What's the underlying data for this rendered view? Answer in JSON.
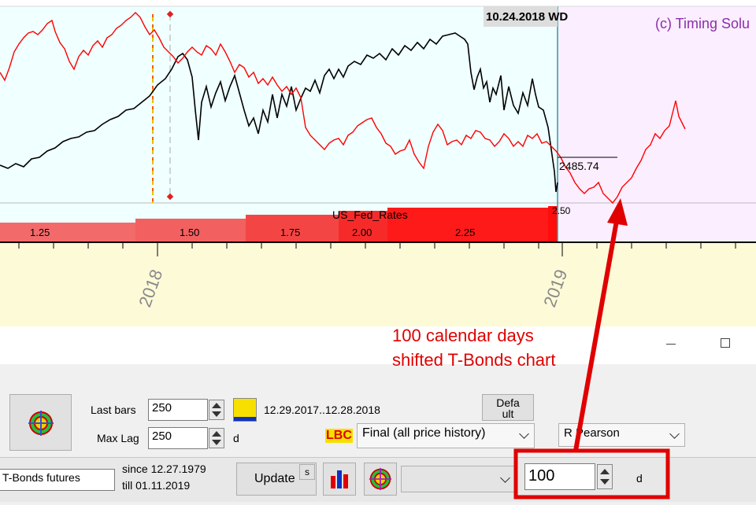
{
  "chart": {
    "date_label": "10.24.2018 WD",
    "copyright": "(c) Timing Solu",
    "price_label": "2485.74",
    "rate_last": "2.50",
    "indicator_name": "US_Fed_Rates",
    "rate_labels": [
      "1.25",
      "1.50",
      "1.75",
      "2.00",
      "2.25"
    ],
    "year_labels": [
      "2018",
      "2019"
    ],
    "colors": {
      "red_line": "#ff0000",
      "black_line": "#000000",
      "past_bg": "#f0ffff",
      "future_bg": "#fbeeff",
      "axis_bg": "#fdfad8"
    }
  },
  "annotation": {
    "line1": "100 calendar days",
    "line2": "shifted T-Bonds chart",
    "color": "#e00000"
  },
  "window": {
    "minimize_icon": "minimize-icon",
    "maximize_icon": "maximize-icon"
  },
  "panel": {
    "last_bars_label": "Last bars",
    "last_bars_value": "250",
    "max_lag_label": "Max Lag",
    "max_lag_value": "250",
    "max_lag_unit": "d",
    "date_range": "12.29.2017..12.28.2018",
    "default_button": "Defa\nult",
    "lbc_label": "LBC",
    "history_select": "Final (all price history)",
    "method_select": "R Pearson"
  },
  "bottom": {
    "instrument": "T-Bonds futures",
    "since": "since 12.27.1979",
    "till": "till 01.11.2019",
    "update_button": "Update",
    "s_button": "s",
    "shift_value": "100",
    "shift_unit": "d"
  }
}
